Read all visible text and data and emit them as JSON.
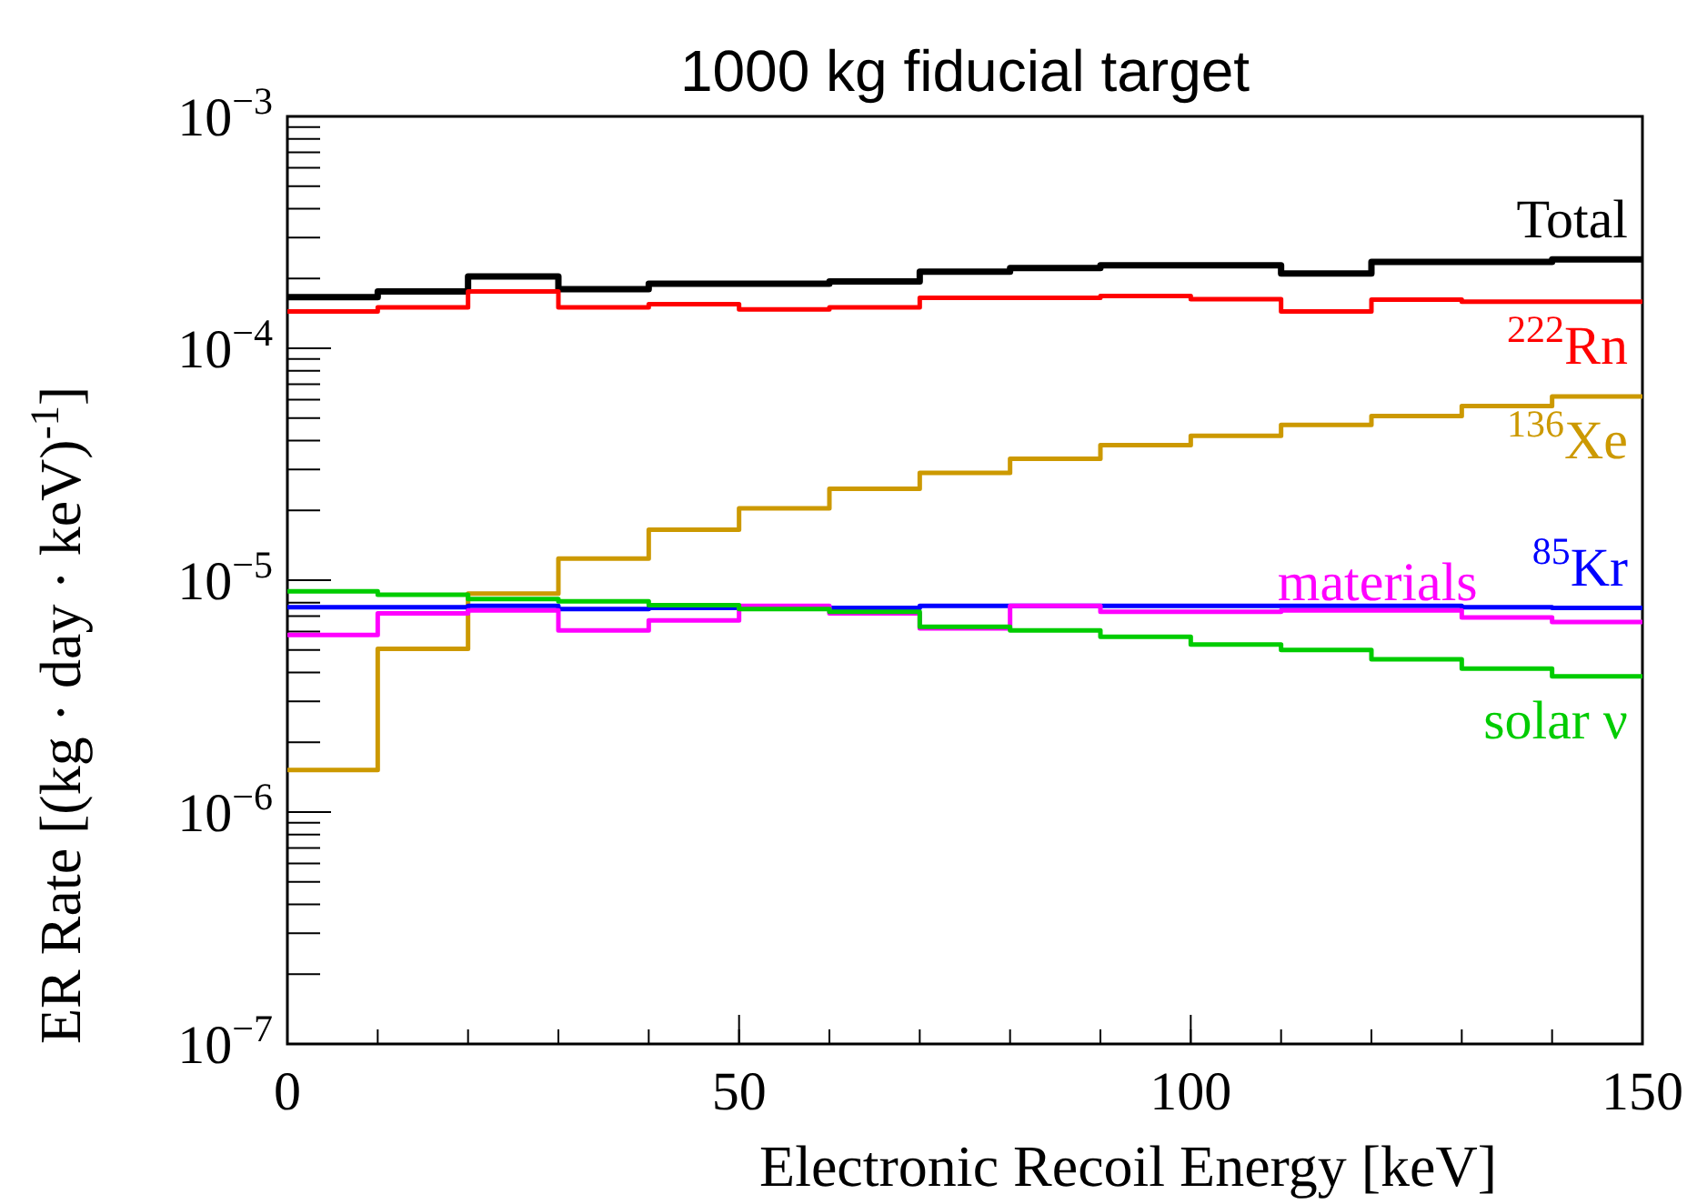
{
  "chart_data": {
    "type": "histogram",
    "title": "1000 kg fiducial target",
    "xlabel": "Electronic Recoil Energy [keV]",
    "ylabel": "ER Rate [(kg · day · keV)$^{-1}$]",
    "bins": [
      0,
      10,
      20,
      30,
      40,
      50,
      60,
      70,
      80,
      90,
      100,
      110,
      120,
      130,
      140,
      150
    ],
    "series": [
      {
        "name": "Total",
        "color": "#000000",
        "values": [
          0.000166,
          0.000176,
          0.000204,
          0.00018,
          0.00019,
          0.00019,
          0.000194,
          0.000214,
          0.000222,
          0.000228,
          0.000228,
          0.00021,
          0.000236,
          0.000236,
          0.000242
        ]
      },
      {
        "name": "$^{222}$Rn",
        "color": "#ff0000",
        "values": [
          0.000144,
          0.00015,
          0.000176,
          0.00015,
          0.000155,
          0.000147,
          0.00015,
          0.000165,
          0.000165,
          0.000168,
          0.000163,
          0.000144,
          0.000162,
          0.000159,
          0.000159
        ]
      },
      {
        "name": "$^{136}$Xe",
        "color": "#cc9900",
        "values": [
          1.52e-06,
          5.06e-06,
          8.75e-06,
          1.24e-05,
          1.65e-05,
          2.04e-05,
          2.48e-05,
          2.9e-05,
          3.34e-05,
          3.82e-05,
          4.19e-05,
          4.67e-05,
          5.1e-05,
          5.64e-05,
          6.2e-05
        ]
      },
      {
        "name": "$^{85}$Kr",
        "color": "#0000ff",
        "values": [
          7.65e-06,
          7.65e-06,
          7.75e-06,
          7.5e-06,
          7.6e-06,
          7.6e-06,
          7.6e-06,
          7.75e-06,
          7.75e-06,
          7.75e-06,
          7.75e-06,
          7.75e-06,
          7.75e-06,
          7.65e-06,
          7.6e-06
        ]
      },
      {
        "name": "materials",
        "color": "#ff00ff",
        "values": [
          5.8e-06,
          7.2e-06,
          7.4e-06,
          6.07e-06,
          6.7e-06,
          7.75e-06,
          7.2e-06,
          6.2e-06,
          7.75e-06,
          7.3e-06,
          7.3e-06,
          7.4e-06,
          7.4e-06,
          6.9e-06,
          6.6e-06
        ]
      },
      {
        "name": "solar ν",
        "color": "#00cc00",
        "values": [
          8.96e-06,
          8.65e-06,
          8.3e-06,
          8.1e-06,
          7.8e-06,
          7.5e-06,
          7.3e-06,
          6.3e-06,
          6.07e-06,
          5.7e-06,
          5.28e-06,
          5e-06,
          4.56e-06,
          4.16e-06,
          3.85e-06
        ]
      }
    ],
    "log": true,
    "grid": false,
    "xlim": [
      0,
      150
    ],
    "xticks": [
      0,
      50,
      100,
      150
    ],
    "ylim": [
      1e-07,
      0.001
    ],
    "yticks": [
      {
        "value": 1e-07,
        "label": "10$^{−7}$"
      },
      {
        "value": 1e-06,
        "label": "10$^{−6}$"
      },
      {
        "value": 1e-05,
        "label": "10$^{−5}$"
      },
      {
        "value": 0.0001,
        "label": "10$^{−4}$"
      },
      {
        "value": 0.001,
        "label": "10$^{−3}$"
      }
    ]
  }
}
